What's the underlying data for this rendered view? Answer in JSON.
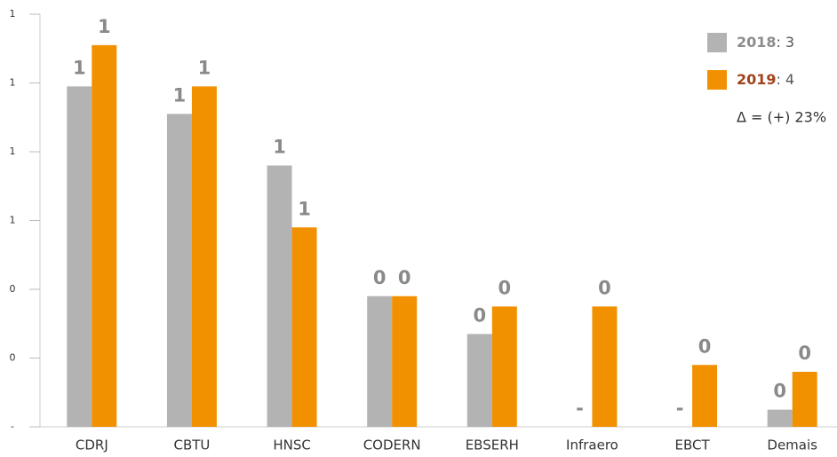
{
  "chart_data": {
    "type": "bar",
    "categories": [
      "CDRJ",
      "CBTU",
      "HNSC",
      "CODERN",
      "EBSERH",
      "Infraero",
      "EBCT",
      "Demais"
    ],
    "series": [
      {
        "name": "2018",
        "color": "#b3b3b3",
        "legend_color": "#8c8c8c",
        "total": 3,
        "values": [
          0.99,
          0.91,
          0.76,
          0.38,
          0.27,
          0,
          0,
          0.05
        ],
        "value_labels": [
          "1",
          "1",
          "1",
          "0",
          "0",
          "-",
          "-",
          "0"
        ]
      },
      {
        "name": "2019",
        "color": "#f29100",
        "legend_color": "#a0431c",
        "total": 4,
        "values": [
          1.11,
          0.99,
          0.58,
          0.38,
          0.35,
          0.35,
          0.18,
          0.16
        ],
        "value_labels": [
          "1",
          "1",
          "1",
          "0",
          "0",
          "0",
          "0",
          "0"
        ]
      }
    ],
    "legend_separator": ":",
    "annotation": "Δ = (+) 23%",
    "ylim": [
      0,
      1.2
    ],
    "yticks": [
      {
        "value": 0,
        "label": "-"
      },
      {
        "value": 0.2,
        "label": "0"
      },
      {
        "value": 0.4,
        "label": "0"
      },
      {
        "value": 0.6,
        "label": "1"
      },
      {
        "value": 0.8,
        "label": "1"
      },
      {
        "value": 1.0,
        "label": "1"
      },
      {
        "value": 1.2,
        "label": "1"
      }
    ]
  }
}
